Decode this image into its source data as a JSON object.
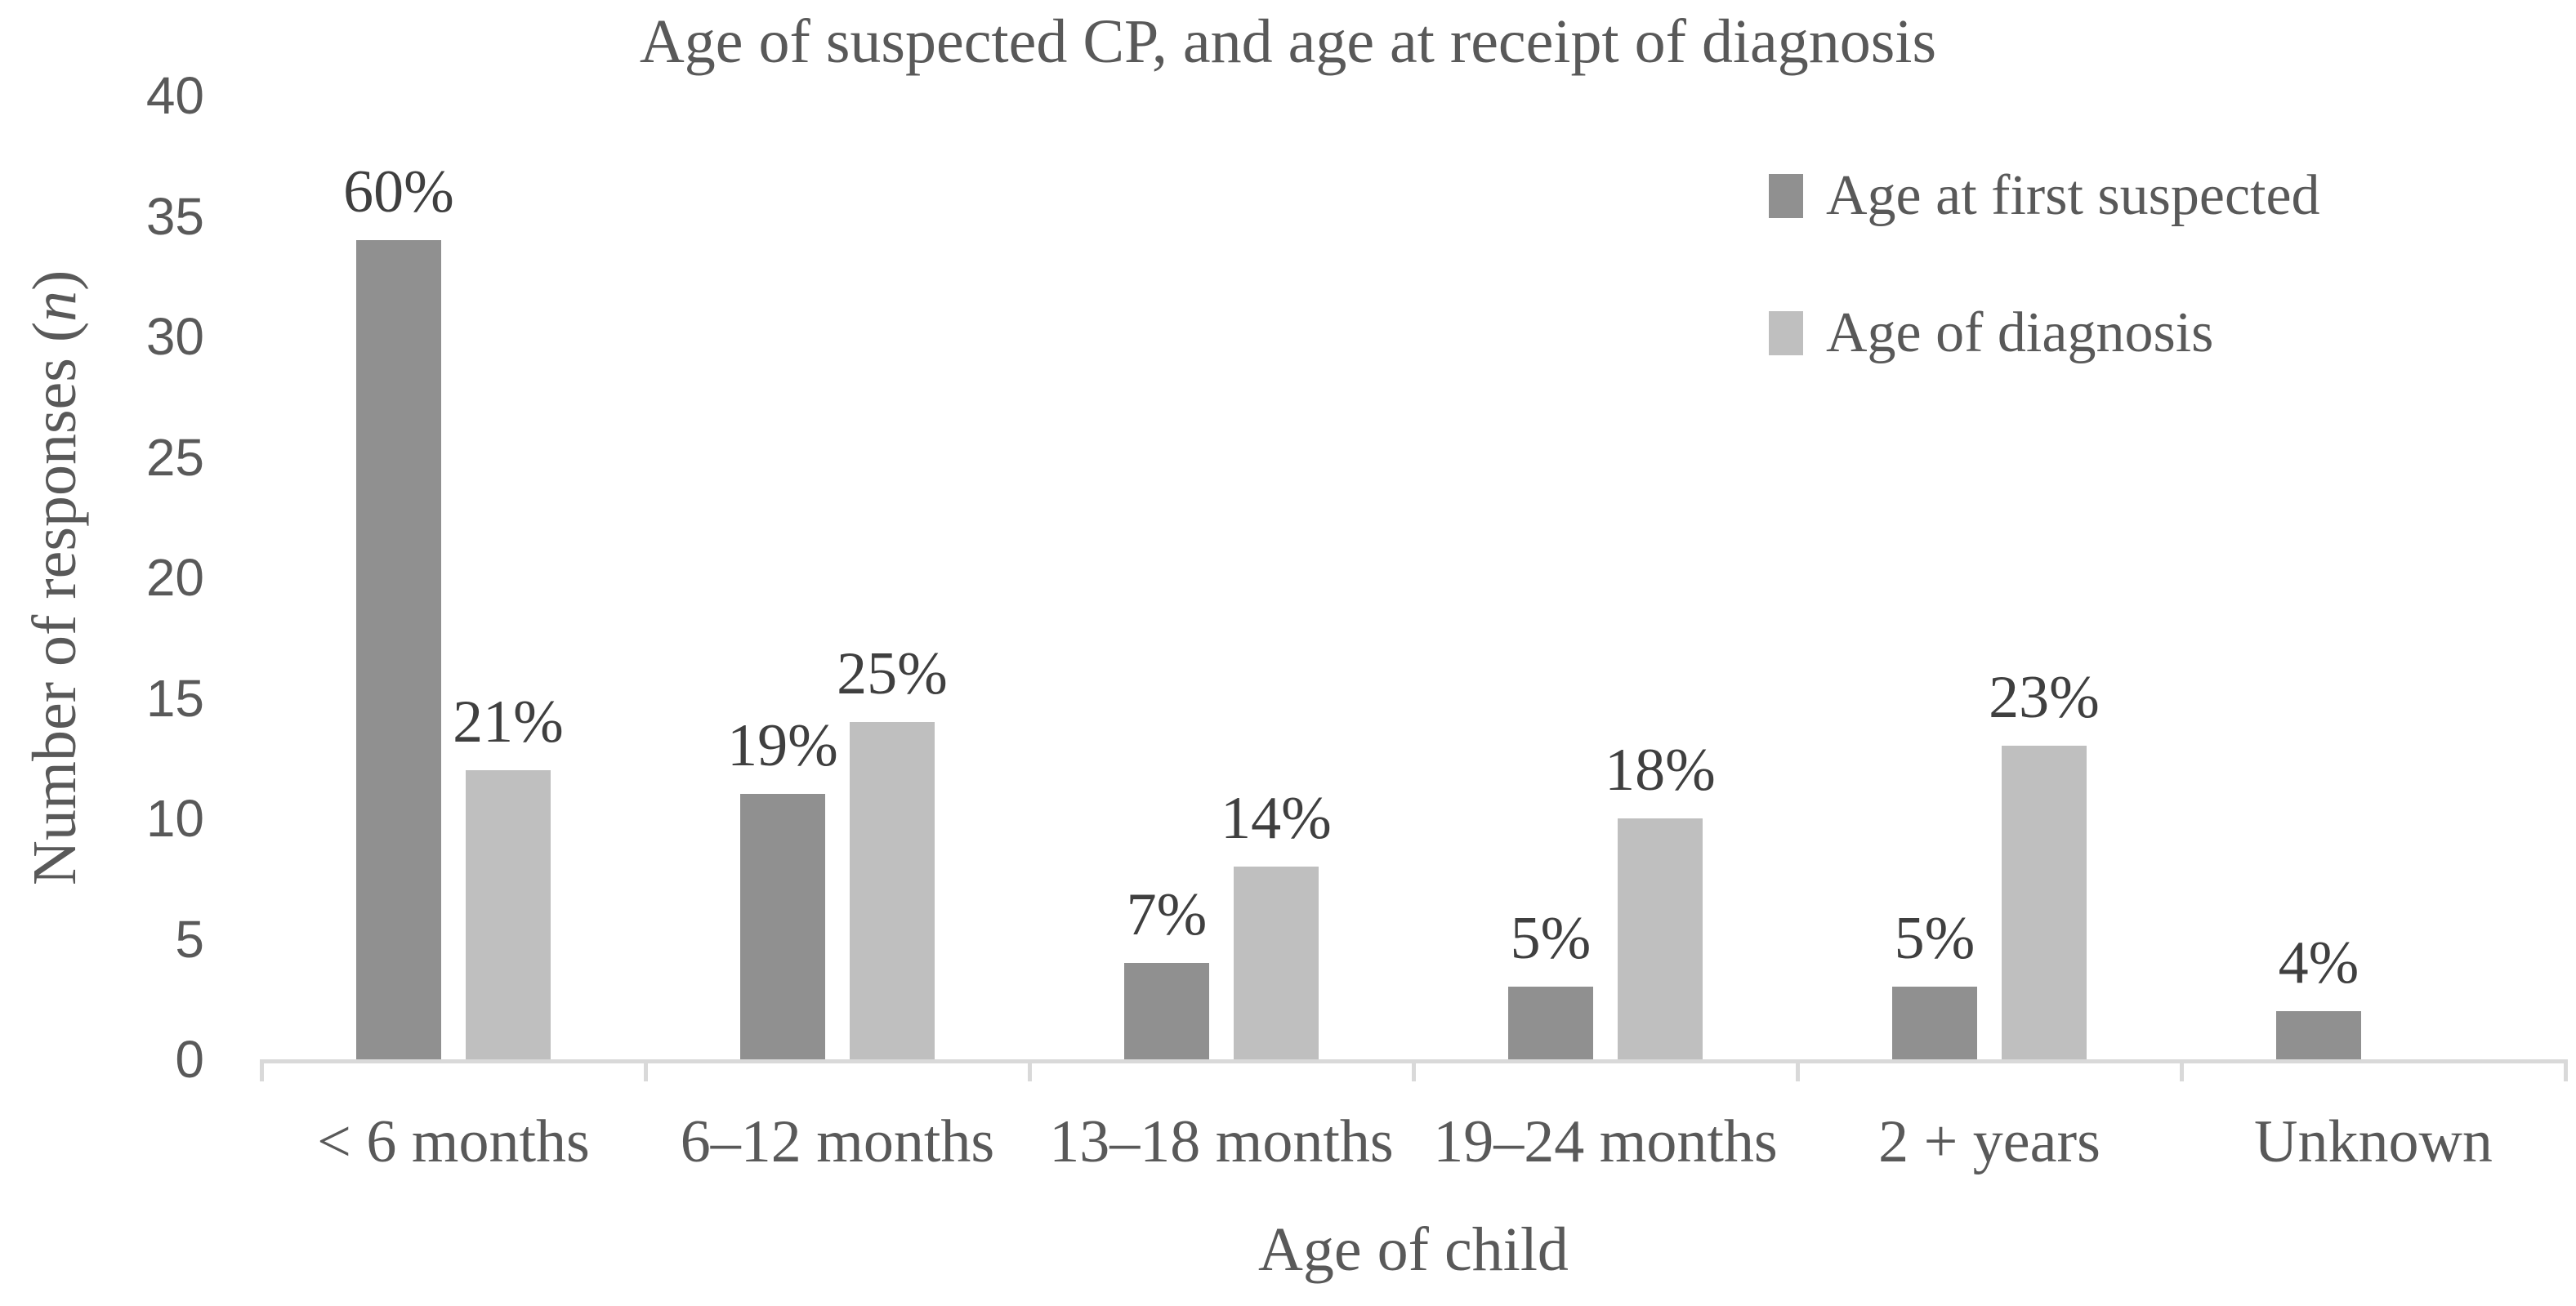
{
  "chart": {
    "title": "Age of suspected CP, and age at receipt of diagnosis",
    "xlabel": "Age of child",
    "ylabel_prefix": "Number of responses (",
    "ylabel_italic": "n",
    "ylabel_suffix": ")"
  },
  "chart_data": {
    "type": "bar",
    "title": "Age of suspected CP, and age at receipt of diagnosis",
    "xlabel": "Age of child",
    "ylabel": "Number of responses (n)",
    "ylim": [
      0,
      40
    ],
    "ytick_step": 5,
    "yticks": [
      0,
      5,
      10,
      15,
      20,
      25,
      30,
      35,
      40
    ],
    "grid": false,
    "legend_position": "top-right-inside",
    "categories": [
      "< 6 months",
      "6–12 months",
      "13–18 months",
      "19–24 months",
      "2 + years",
      "Unknown"
    ],
    "series": [
      {
        "name": "Age at first suspected",
        "color": "#909090",
        "values": [
          34,
          11,
          4,
          3,
          3,
          2
        ],
        "data_labels": [
          "60%",
          "19%",
          "7%",
          "5%",
          "5%",
          "4%"
        ]
      },
      {
        "name": "Age of diagnosis",
        "color": "#bfbfbf",
        "values": [
          12,
          14,
          8,
          10,
          13,
          null
        ],
        "data_labels": [
          "21%",
          "25%",
          "14%",
          "18%",
          "23%",
          null
        ]
      }
    ]
  },
  "colors": {
    "axis_line": "#d9d9d9",
    "tick_text": "#595959",
    "data_label_text": "#3f3f3f",
    "title_text": "#595959"
  }
}
